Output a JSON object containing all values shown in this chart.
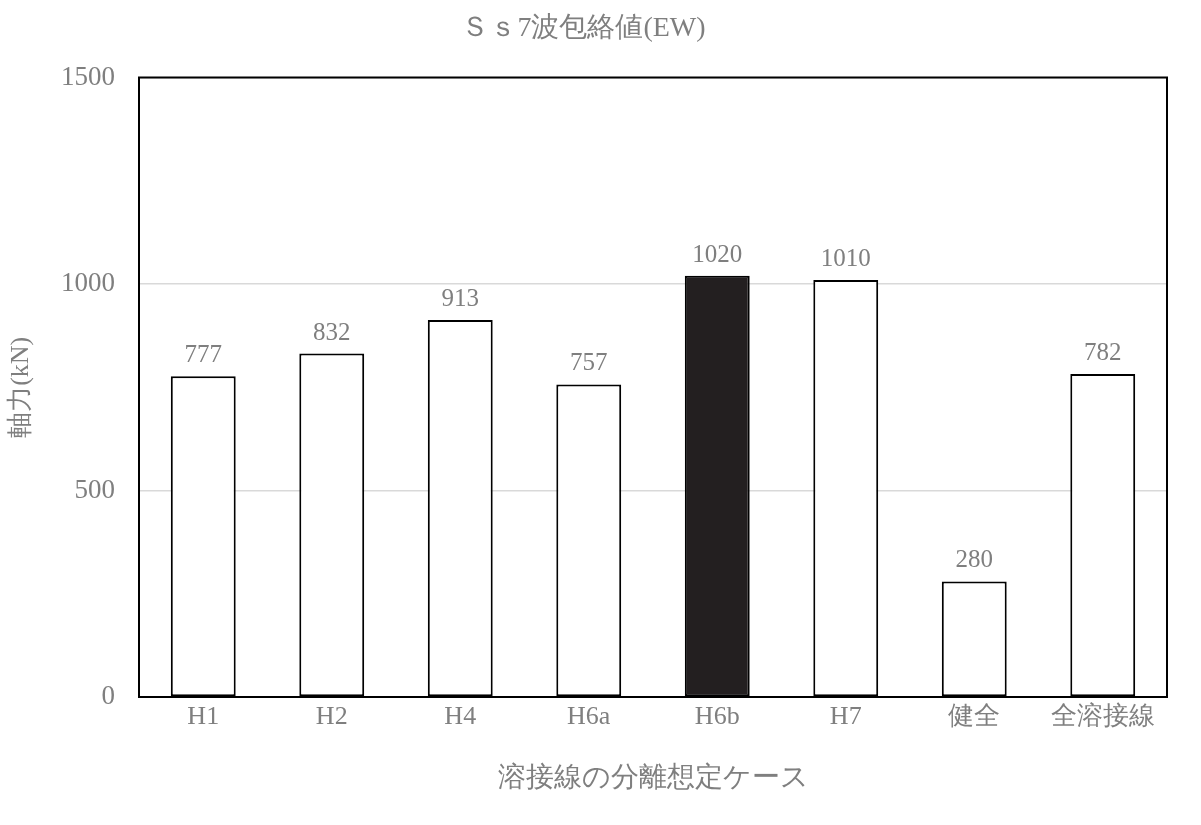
{
  "chart_data": {
    "type": "bar",
    "title": "Ｓｓ7波包絡値(EW)",
    "xlabel": "溶接線の分離想定ケース",
    "ylabel": "軸力(kN)",
    "categories": [
      "H1",
      "H2",
      "H4",
      "H6a",
      "H6b",
      "H7",
      "健全",
      "全溶接線"
    ],
    "values": [
      777,
      832,
      913,
      757,
      1020,
      1010,
      280,
      782
    ],
    "colors": [
      "#ffffff",
      "#ffffff",
      "#ffffff",
      "#ffffff",
      "#231f20",
      "#ffffff",
      "#ffffff",
      "#ffffff"
    ],
    "ylim": [
      0,
      1500
    ],
    "yticks": [
      0,
      500,
      1000,
      1500
    ],
    "grid": "y",
    "data_labels": true
  }
}
